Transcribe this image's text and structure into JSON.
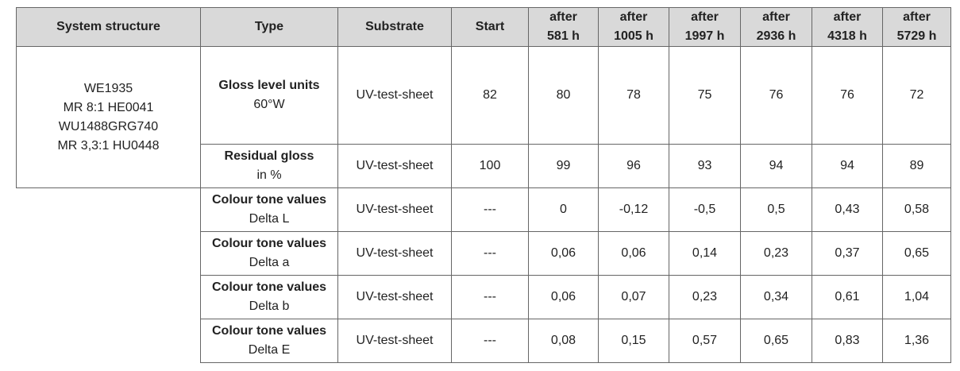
{
  "table": {
    "header": [
      [
        "System structure"
      ],
      [
        "Type"
      ],
      [
        "Substrate"
      ],
      [
        "Start"
      ],
      [
        "after",
        "581 h"
      ],
      [
        "after",
        "1005 h"
      ],
      [
        "after",
        "1997 h"
      ],
      [
        "after",
        "2936 h"
      ],
      [
        "after",
        "4318 h"
      ],
      [
        "after",
        "5729 h"
      ]
    ],
    "system": [
      "WE1935",
      "MR 8:1 HE0041",
      "WU1488GRG740",
      "MR 3,3:1 HU0448"
    ],
    "rows": [
      {
        "type": [
          "Gloss level units",
          "60°W"
        ],
        "substrate": "UV-test-sheet",
        "values": [
          82,
          80,
          78,
          75,
          76,
          76,
          72
        ]
      },
      {
        "type": [
          "Residual gloss",
          "in %"
        ],
        "substrate": "UV-test-sheet",
        "values": [
          100,
          99,
          96,
          93,
          94,
          94,
          89
        ]
      },
      {
        "type": [
          "Colour tone values",
          "Delta L"
        ],
        "substrate": "UV-test-sheet",
        "values": [
          "---",
          0,
          "-0,12",
          "-0,5",
          "0,5",
          "0,43",
          "0,58"
        ]
      },
      {
        "type": [
          "Colour tone values",
          "Delta a"
        ],
        "substrate": "UV-test-sheet",
        "values": [
          "---",
          "0,06",
          "0,06",
          "0,14",
          "0,23",
          "0,37",
          "0,65"
        ]
      },
      {
        "type": [
          "Colour tone values",
          "Delta b"
        ],
        "substrate": "UV-test-sheet",
        "values": [
          "---",
          "0,06",
          "0,07",
          "0,23",
          "0,34",
          "0,61",
          "1,04"
        ]
      },
      {
        "type": [
          "Colour tone values",
          "Delta E"
        ],
        "substrate": "UV-test-sheet",
        "values": [
          "---",
          "0,08",
          "0,15",
          "0,57",
          "0,65",
          "0,83",
          "1,36"
        ]
      }
    ]
  }
}
